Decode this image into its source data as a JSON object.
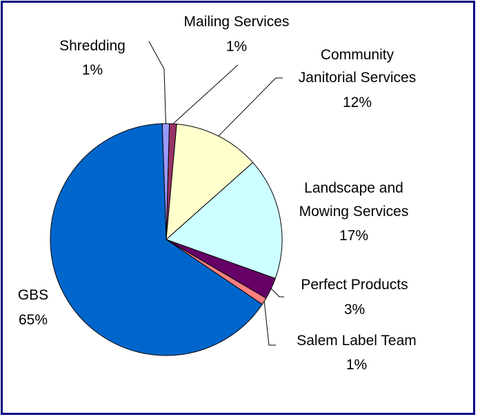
{
  "chart_data": {
    "type": "pie",
    "title": "",
    "slices": [
      {
        "label": "Shredding",
        "value": 1,
        "value_label": "1%",
        "color": "#9999FF"
      },
      {
        "label": "Mailing Services",
        "value": 1,
        "value_label": "1%",
        "color": "#993366"
      },
      {
        "label": "Community Janitorial Services",
        "value": 12,
        "value_label": "12%",
        "color": "#FFFFCC"
      },
      {
        "label": "Landscape and Mowing Services",
        "value": 17,
        "value_label": "17%",
        "color": "#CCFFFF"
      },
      {
        "label": "Perfect Products",
        "value": 3,
        "value_label": "3%",
        "color": "#660066"
      },
      {
        "label": "Salem Label Team",
        "value": 1,
        "value_label": "1%",
        "color": "#FF8080"
      },
      {
        "label": "GBS",
        "value": 65,
        "value_label": "65%",
        "color": "#0066CC"
      }
    ],
    "legend": "none",
    "frame_color": "#000080"
  }
}
